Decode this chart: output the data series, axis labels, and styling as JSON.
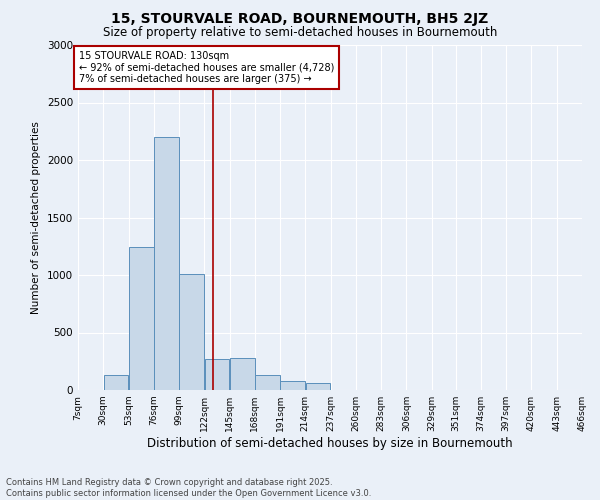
{
  "title": "15, STOURVALE ROAD, BOURNEMOUTH, BH5 2JZ",
  "subtitle": "Size of property relative to semi-detached houses in Bournemouth",
  "xlabel": "Distribution of semi-detached houses by size in Bournemouth",
  "ylabel": "Number of semi-detached properties",
  "footnote1": "Contains HM Land Registry data © Crown copyright and database right 2025.",
  "footnote2": "Contains public sector information licensed under the Open Government Licence v3.0.",
  "bin_labels": [
    "7sqm",
    "30sqm",
    "53sqm",
    "76sqm",
    "99sqm",
    "122sqm",
    "145sqm",
    "168sqm",
    "191sqm",
    "214sqm",
    "237sqm",
    "260sqm",
    "283sqm",
    "306sqm",
    "329sqm",
    "351sqm",
    "374sqm",
    "397sqm",
    "420sqm",
    "443sqm",
    "466sqm"
  ],
  "bar_heights": [
    0,
    130,
    1240,
    2200,
    1010,
    270,
    280,
    130,
    80,
    60,
    0,
    0,
    0,
    0,
    0,
    0,
    0,
    0,
    0,
    0
  ],
  "bar_color": "#c8d8e8",
  "bar_edge_color": "#5a8fbb",
  "background_color": "#eaf0f8",
  "grid_color": "#ffffff",
  "vline_color": "#aa0000",
  "vline_x_sqm": 130,
  "annotation_title": "15 STOURVALE ROAD: 130sqm",
  "annotation_line1": "← 92% of semi-detached houses are smaller (4,728)",
  "annotation_line2": "7% of semi-detached houses are larger (375) →",
  "annotation_box_color": "#ffffff",
  "annotation_box_edge": "#aa0000",
  "ylim": [
    0,
    3000
  ],
  "yticks": [
    0,
    500,
    1000,
    1500,
    2000,
    2500,
    3000
  ],
  "bin_starts": [
    7,
    30,
    53,
    76,
    99,
    122,
    145,
    168,
    191,
    214,
    237,
    260,
    283,
    306,
    329,
    351,
    374,
    397,
    420,
    443
  ],
  "bin_width": 23
}
